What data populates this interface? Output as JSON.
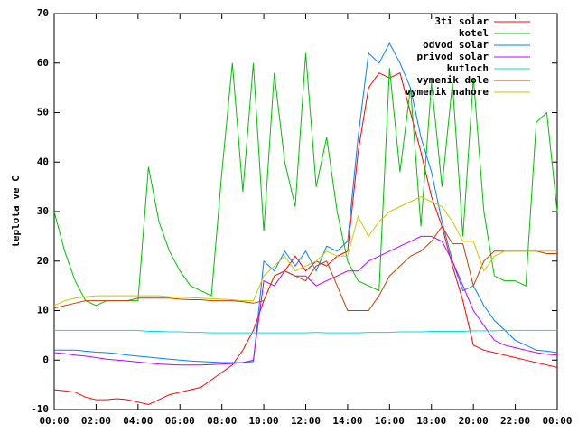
{
  "chart_data": {
    "type": "line",
    "y_label": "teplota ve C",
    "x": [
      0,
      0.5,
      1,
      1.5,
      2,
      2.5,
      3,
      3.5,
      4,
      4.5,
      5,
      5.5,
      6,
      6.5,
      7,
      7.5,
      8,
      8.5,
      9,
      9.5,
      10,
      10.5,
      11,
      11.5,
      12,
      12.5,
      13,
      13.5,
      14,
      14.5,
      15,
      15.5,
      16,
      16.5,
      17,
      17.5,
      18,
      18.5,
      19,
      19.5,
      20,
      20.5,
      21,
      21.5,
      22,
      22.5,
      23,
      23.5,
      24
    ],
    "xlim": [
      0,
      24
    ],
    "xticks": [
      {
        "value": 0,
        "label": "00:00"
      },
      {
        "value": 2,
        "label": "02:00"
      },
      {
        "value": 4,
        "label": "04:00"
      },
      {
        "value": 6,
        "label": "06:00"
      },
      {
        "value": 8,
        "label": "08:00"
      },
      {
        "value": 10,
        "label": "10:00"
      },
      {
        "value": 12,
        "label": "12:00"
      },
      {
        "value": 14,
        "label": "14:00"
      },
      {
        "value": 16,
        "label": "16:00"
      },
      {
        "value": 18,
        "label": "18:00"
      },
      {
        "value": 20,
        "label": "20:00"
      },
      {
        "value": 22,
        "label": "22:00"
      },
      {
        "value": 24,
        "label": "00:00"
      }
    ],
    "ylim": [
      -10,
      70
    ],
    "yticks": [
      -10,
      0,
      10,
      20,
      30,
      40,
      50,
      60,
      70
    ],
    "legend": "top-right",
    "series": [
      {
        "name": "3ti solar",
        "color": "#ff0000",
        "values": [
          -6,
          -6.2,
          -6.5,
          -7.5,
          -8,
          -8,
          -7.8,
          -8,
          -8.5,
          -9,
          -8,
          -7,
          -6.5,
          -6,
          -5.5,
          -4,
          -2.5,
          -1,
          2,
          6,
          12,
          17,
          18,
          21,
          18,
          20,
          19,
          21,
          22,
          42,
          55,
          58,
          57,
          58,
          50,
          42,
          33,
          27,
          19,
          12,
          3,
          2,
          1.5,
          1,
          0.5,
          0,
          -0.5,
          -1,
          -1.5
        ]
      },
      {
        "name": "kotel",
        "color": "#00c000",
        "values": [
          30,
          22,
          16,
          12,
          11,
          12,
          12,
          12,
          12,
          39,
          28,
          22,
          18,
          15,
          14,
          13,
          38,
          60,
          34,
          60,
          26,
          58,
          40,
          31,
          62,
          35,
          45,
          30,
          20,
          16,
          15,
          14,
          59,
          38,
          55,
          27,
          56,
          35,
          56,
          25,
          57,
          30,
          17,
          16,
          16,
          15,
          48,
          50,
          30
        ]
      },
      {
        "name": "odvod solar",
        "color": "#0080ff",
        "values": [
          2,
          2,
          2,
          1.8,
          1.6,
          1.5,
          1.3,
          1,
          0.8,
          0.6,
          0.4,
          0.2,
          0,
          -0.2,
          -0.3,
          -0.4,
          -0.5,
          -0.5,
          -0.5,
          -0.3,
          20,
          18,
          22,
          19,
          22,
          18,
          23,
          22,
          24,
          45,
          62,
          60,
          64,
          60,
          55,
          45,
          38,
          28,
          20,
          14,
          15,
          11,
          8,
          6,
          4,
          3,
          2,
          1.8,
          1.5
        ]
      },
      {
        "name": "privod solar",
        "color": "#c000ff",
        "values": [
          1.5,
          1.3,
          1,
          0.8,
          0.5,
          0.2,
          0,
          -0.2,
          -0.4,
          -0.6,
          -0.8,
          -0.9,
          -1,
          -1,
          -1,
          -0.9,
          -0.8,
          -0.7,
          -0.5,
          0,
          16,
          15,
          18,
          17,
          17,
          15,
          16,
          17,
          18,
          18,
          20,
          21,
          22,
          23,
          24,
          25,
          25,
          24,
          20,
          15,
          10,
          7,
          4,
          3,
          2.5,
          2,
          1.5,
          1.2,
          1
        ]
      },
      {
        "name": "kutloch",
        "color": "#00e0e0",
        "values": [
          6,
          6,
          6,
          6,
          6,
          6,
          6,
          6,
          6,
          5.8,
          5.8,
          5.7,
          5.7,
          5.6,
          5.6,
          5.5,
          5.5,
          5.5,
          5.5,
          5.5,
          5.5,
          5.5,
          5.5,
          5.5,
          5.5,
          5.6,
          5.5,
          5.5,
          5.5,
          5.5,
          5.6,
          5.6,
          5.6,
          5.7,
          5.7,
          5.7,
          5.8,
          5.8,
          5.8,
          5.8,
          5.9,
          5.9,
          5.9,
          6,
          6,
          6,
          6,
          6,
          6
        ]
      },
      {
        "name": "vymenik dole",
        "color": "#c04000",
        "values": [
          10.5,
          11,
          11.5,
          12,
          12,
          12,
          12,
          12,
          12.5,
          12.5,
          12.5,
          12.5,
          12.3,
          12.2,
          12.2,
          12,
          12,
          12,
          11.8,
          11.5,
          12,
          17,
          18,
          17,
          16,
          19,
          20,
          15,
          10,
          10,
          10,
          13,
          17,
          19,
          21,
          22,
          24,
          27,
          23.5,
          23.5,
          15,
          20,
          22,
          22,
          22,
          22,
          22,
          21.5,
          21.5
        ]
      },
      {
        "name": "vymenik nahore",
        "color": "#c8c800",
        "values": [
          11,
          12,
          12.5,
          12.8,
          13,
          13,
          13,
          13,
          13,
          13,
          13,
          12.8,
          12.7,
          12.6,
          12.5,
          12.4,
          12.3,
          12.2,
          12,
          12,
          17,
          19,
          21,
          18,
          19,
          20,
          22,
          21,
          21,
          29,
          25,
          28,
          30,
          31,
          32,
          33,
          32,
          31,
          28,
          24,
          24,
          18,
          21,
          22,
          22,
          22,
          22,
          22,
          22
        ]
      }
    ]
  }
}
